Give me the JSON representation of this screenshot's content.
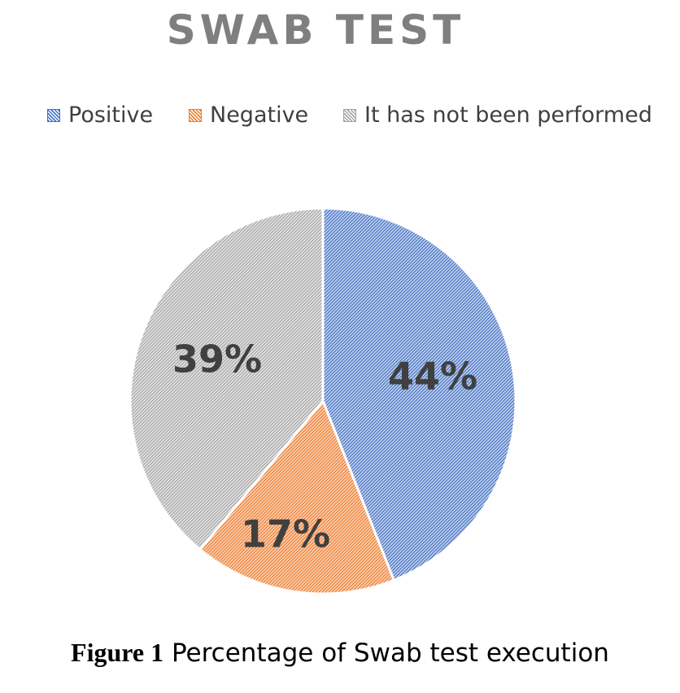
{
  "chart_data": {
    "type": "pie",
    "title": "SWAB TEST",
    "series": [
      {
        "name": "Positive",
        "value": 44,
        "label": "44%",
        "color": "#4472c4"
      },
      {
        "name": "Negative",
        "value": 17,
        "label": "17%",
        "color": "#ed7d31"
      },
      {
        "name": "It has not been performed",
        "value": 39,
        "label": "39%",
        "color": "#a5a5a5"
      }
    ],
    "legend_position": "top",
    "fill_style": "hatched"
  },
  "caption": {
    "figure_label": "Figure 1",
    "text": "Percentage of Swab test execution"
  }
}
